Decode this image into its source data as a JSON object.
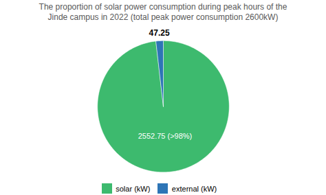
{
  "chart_data": {
    "type": "pie",
    "title": "The proportion of solar power consumption during peak hours of the\nJinde campus in 2022 (total peak power consumption 2600kW)",
    "categories": [
      "solar (kW)",
      "external (kW)"
    ],
    "values": [
      2552.75,
      47.25
    ],
    "colors": [
      "#3dba6e",
      "#2e75b6"
    ],
    "data_labels": true,
    "value_labels": [
      "2552.75 (>98%)",
      "47.25"
    ],
    "legend": "bottom"
  }
}
